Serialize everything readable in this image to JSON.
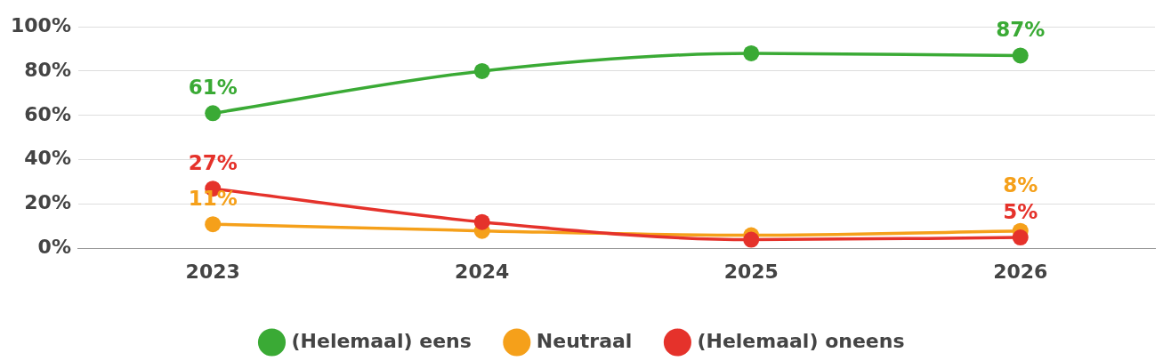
{
  "chart_data": {
    "type": "line",
    "categories": [
      "2023",
      "2024",
      "2025",
      "2026"
    ],
    "series": [
      {
        "name": "(Helemaal) eens",
        "color": "#3aaa35",
        "values": [
          61,
          80,
          88,
          87
        ],
        "value_labels": [
          "61%",
          null,
          null,
          "87%"
        ]
      },
      {
        "name": "Neutraal",
        "color": "#f5a01a",
        "values": [
          11,
          8,
          6,
          8
        ],
        "value_labels": [
          "11%",
          null,
          null,
          "8%"
        ]
      },
      {
        "name": "(Helemaal) oneens",
        "color": "#e5322b",
        "values": [
          27,
          12,
          4,
          5
        ],
        "value_labels": [
          "27%",
          null,
          null,
          "5%"
        ]
      }
    ],
    "ylim": [
      0,
      100
    ],
    "yticks": [
      {
        "value": 0,
        "label": "0%"
      },
      {
        "value": 20,
        "label": "20%"
      },
      {
        "value": 40,
        "label": "40%"
      },
      {
        "value": 60,
        "label": "60%"
      },
      {
        "value": 80,
        "label": "80%"
      },
      {
        "value": 100,
        "label": "100%"
      }
    ],
    "grid": "y",
    "legend": "bottom",
    "marker": "circle",
    "line_style": "solid"
  }
}
